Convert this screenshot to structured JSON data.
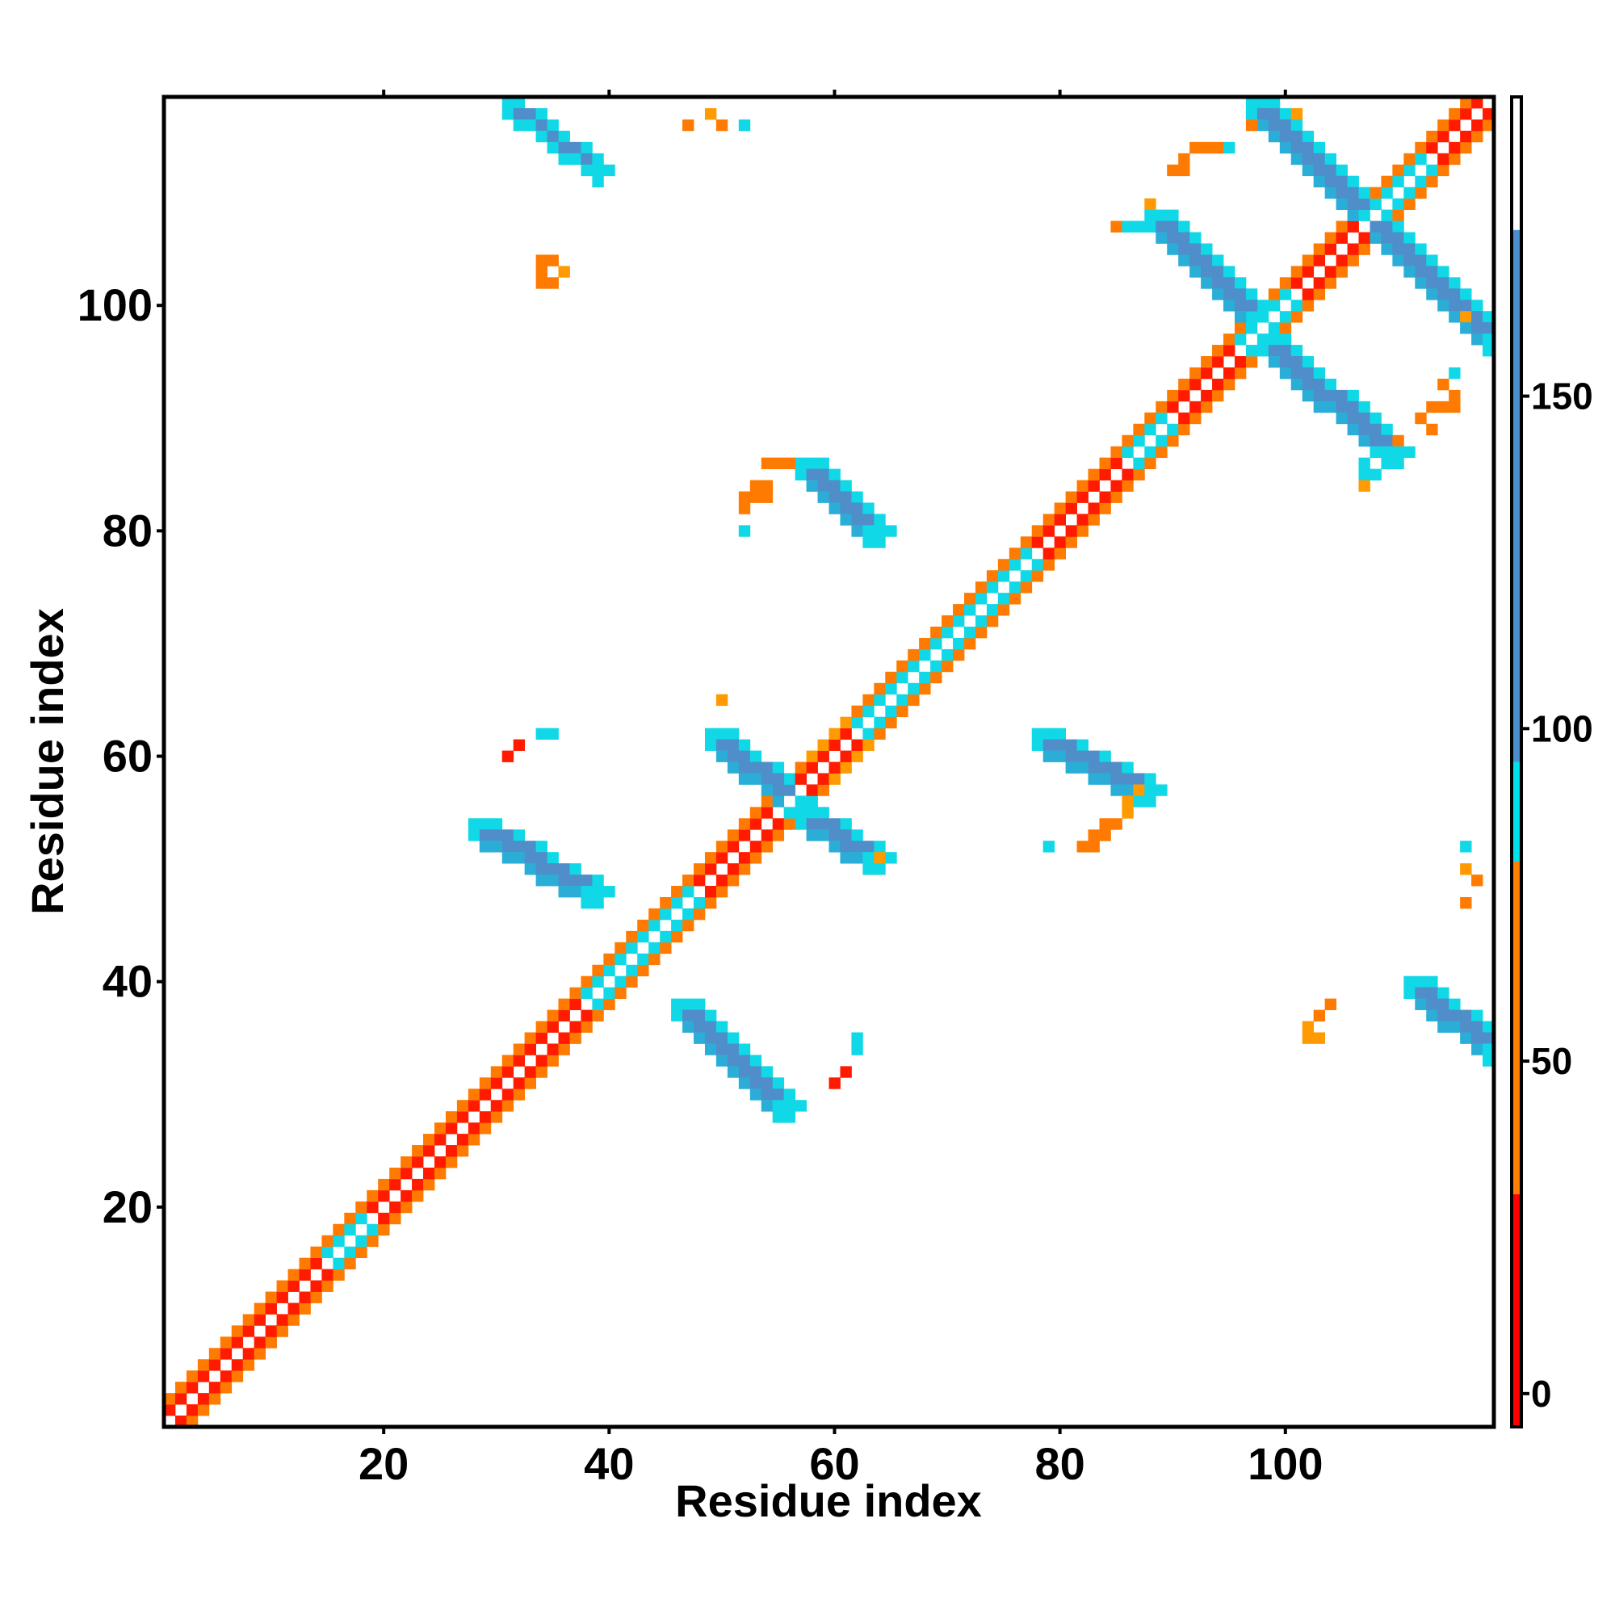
{
  "chart_data": {
    "type": "heatmap",
    "title": "",
    "xlabel": "Residue index",
    "ylabel": "Residue index",
    "xlim": [
      1,
      118
    ],
    "ylim": [
      1,
      118
    ],
    "xticks": [
      20,
      40,
      60,
      80,
      100
    ],
    "yticks": [
      20,
      40,
      60,
      80,
      100
    ],
    "colorbar": {
      "ticks": [
        0,
        50,
        100,
        150
      ],
      "range": [
        -5,
        195
      ],
      "bands": [
        {
          "from": -5,
          "to": 30,
          "color": "#ff0000"
        },
        {
          "from": 30,
          "to": 80,
          "color": "#ff7f00"
        },
        {
          "from": 80,
          "to": 95,
          "color": "#00e0e8"
        },
        {
          "from": 95,
          "to": 175,
          "color": "#4a8fcc"
        },
        {
          "from": 175,
          "to": 195,
          "color": "#ffffff"
        }
      ]
    },
    "cell_colors": {
      "red": "#ff1a00",
      "orange": "#ff7a00",
      "amber": "#ff9a00",
      "cyan": "#10d8e6",
      "blue": "#4f8ec8",
      "teal": "#2aaed8"
    },
    "diagonal_bands": [
      {
        "from": 1,
        "to": 15,
        "offset1": "red",
        "offset2": "orange"
      },
      {
        "from": 15,
        "to": 19,
        "offset1": "cyan",
        "offset2": "orange"
      },
      {
        "from": 19,
        "to": 38,
        "offset1": "red",
        "offset2": "orange"
      },
      {
        "from": 38,
        "to": 48,
        "offset1": "cyan",
        "offset2": "orange"
      },
      {
        "from": 48,
        "to": 58,
        "offset1": "red",
        "offset2": "orange"
      },
      {
        "from": 58,
        "to": 62,
        "offset1": "red",
        "offset2": "amber"
      },
      {
        "from": 62,
        "to": 78,
        "offset1": "cyan",
        "offset2": "orange"
      },
      {
        "from": 78,
        "to": 86,
        "offset1": "red",
        "offset2": "orange"
      },
      {
        "from": 86,
        "to": 90,
        "offset1": "cyan",
        "offset2": "orange"
      },
      {
        "from": 90,
        "to": 96,
        "offset1": "red",
        "offset2": "orange"
      },
      {
        "from": 96,
        "to": 101,
        "offset1": "cyan",
        "offset2": "orange"
      },
      {
        "from": 101,
        "to": 109,
        "offset1": "red",
        "offset2": "orange"
      },
      {
        "from": 109,
        "to": 113,
        "offset1": "cyan",
        "offset2": "orange"
      },
      {
        "from": 113,
        "to": 118,
        "offset1": "red",
        "offset2": "orange"
      }
    ],
    "antiparallel_blocks": [
      {
        "x": [
          31,
          39
        ],
        "y": [
          118,
          112
        ],
        "width": 2
      },
      {
        "x": [
          97,
          107
        ],
        "y": [
          118,
          108
        ],
        "width": 3
      },
      {
        "x": [
          107,
          118
        ],
        "y": [
          108,
          97
        ],
        "width": 3
      },
      {
        "x": [
          88,
          97
        ],
        "y": [
          108,
          99
        ],
        "width": 3
      },
      {
        "x": [
          98,
          109
        ],
        "y": [
          97,
          87
        ],
        "width": 3
      },
      {
        "x": [
          57,
          63
        ],
        "y": [
          86,
          80
        ],
        "width": 3
      },
      {
        "x": [
          49,
          56
        ],
        "y": [
          62,
          56
        ],
        "width": 3
      },
      {
        "x": [
          57,
          63
        ],
        "y": [
          55,
          51
        ],
        "width": 3
      },
      {
        "x": [
          28,
          38
        ],
        "y": [
          54,
          48
        ],
        "width": 3
      },
      {
        "x": [
          46,
          55
        ],
        "y": [
          38,
          29
        ],
        "width": 3
      },
      {
        "x": [
          78,
          87
        ],
        "y": [
          62,
          57
        ],
        "width": 3
      },
      {
        "x": [
          111,
          118
        ],
        "y": [
          40,
          34
        ],
        "width": 3
      }
    ],
    "scattered_cells": [
      {
        "x": 47,
        "y": 116,
        "c": "orange"
      },
      {
        "x": 49,
        "y": 117,
        "c": "amber"
      },
      {
        "x": 50,
        "y": 116,
        "c": "orange"
      },
      {
        "x": 52,
        "y": 116,
        "c": "cyan"
      },
      {
        "x": 92,
        "y": 114,
        "c": "orange"
      },
      {
        "x": 93,
        "y": 114,
        "c": "orange"
      },
      {
        "x": 94,
        "y": 114,
        "c": "orange"
      },
      {
        "x": 95,
        "y": 114,
        "c": "cyan"
      },
      {
        "x": 91,
        "y": 113,
        "c": "orange"
      },
      {
        "x": 90,
        "y": 112,
        "c": "orange"
      },
      {
        "x": 91,
        "y": 112,
        "c": "orange"
      },
      {
        "x": 88,
        "y": 109,
        "c": "amber"
      },
      {
        "x": 85,
        "y": 107,
        "c": "orange"
      },
      {
        "x": 86,
        "y": 107,
        "c": "cyan"
      },
      {
        "x": 87,
        "y": 107,
        "c": "cyan"
      },
      {
        "x": 34,
        "y": 104,
        "c": "orange"
      },
      {
        "x": 35,
        "y": 104,
        "c": "orange"
      },
      {
        "x": 36,
        "y": 103,
        "c": "amber"
      },
      {
        "x": 34,
        "y": 103,
        "c": "orange"
      },
      {
        "x": 34,
        "y": 102,
        "c": "orange"
      },
      {
        "x": 35,
        "y": 102,
        "c": "orange"
      },
      {
        "x": 116,
        "y": 99,
        "c": "amber"
      },
      {
        "x": 115,
        "y": 94,
        "c": "cyan"
      },
      {
        "x": 114,
        "y": 93,
        "c": "orange"
      },
      {
        "x": 115,
        "y": 92,
        "c": "orange"
      },
      {
        "x": 113,
        "y": 91,
        "c": "orange"
      },
      {
        "x": 114,
        "y": 91,
        "c": "orange"
      },
      {
        "x": 115,
        "y": 91,
        "c": "orange"
      },
      {
        "x": 112,
        "y": 90,
        "c": "orange"
      },
      {
        "x": 113,
        "y": 89,
        "c": "orange"
      },
      {
        "x": 110,
        "y": 88,
        "c": "orange"
      },
      {
        "x": 108,
        "y": 87,
        "c": "cyan"
      },
      {
        "x": 107,
        "y": 86,
        "c": "cyan"
      },
      {
        "x": 107,
        "y": 85,
        "c": "cyan"
      },
      {
        "x": 108,
        "y": 85,
        "c": "cyan"
      },
      {
        "x": 107,
        "y": 84,
        "c": "amber"
      },
      {
        "x": 54,
        "y": 86,
        "c": "orange"
      },
      {
        "x": 55,
        "y": 86,
        "c": "orange"
      },
      {
        "x": 56,
        "y": 86,
        "c": "orange"
      },
      {
        "x": 54,
        "y": 84,
        "c": "orange"
      },
      {
        "x": 53,
        "y": 84,
        "c": "orange"
      },
      {
        "x": 52,
        "y": 83,
        "c": "orange"
      },
      {
        "x": 53,
        "y": 83,
        "c": "orange"
      },
      {
        "x": 54,
        "y": 83,
        "c": "orange"
      },
      {
        "x": 52,
        "y": 82,
        "c": "orange"
      },
      {
        "x": 52,
        "y": 80,
        "c": "cyan"
      },
      {
        "x": 50,
        "y": 65,
        "c": "amber"
      },
      {
        "x": 31,
        "y": 60,
        "c": "red"
      },
      {
        "x": 32,
        "y": 61,
        "c": "red"
      },
      {
        "x": 34,
        "y": 62,
        "c": "cyan"
      },
      {
        "x": 35,
        "y": 62,
        "c": "cyan"
      },
      {
        "x": 64,
        "y": 51,
        "c": "amber"
      },
      {
        "x": 87,
        "y": 57,
        "c": "amber"
      },
      {
        "x": 86,
        "y": 56,
        "c": "amber"
      },
      {
        "x": 86,
        "y": 55,
        "c": "amber"
      },
      {
        "x": 84,
        "y": 54,
        "c": "orange"
      },
      {
        "x": 85,
        "y": 54,
        "c": "orange"
      },
      {
        "x": 84,
        "y": 53,
        "c": "orange"
      },
      {
        "x": 83,
        "y": 53,
        "c": "orange"
      },
      {
        "x": 83,
        "y": 52,
        "c": "orange"
      },
      {
        "x": 82,
        "y": 52,
        "c": "orange"
      },
      {
        "x": 79,
        "y": 52,
        "c": "cyan"
      },
      {
        "x": 116,
        "y": 52,
        "c": "cyan"
      },
      {
        "x": 116,
        "y": 50,
        "c": "amber"
      },
      {
        "x": 117,
        "y": 49,
        "c": "orange"
      },
      {
        "x": 116,
        "y": 47,
        "c": "orange"
      },
      {
        "x": 62,
        "y": 35,
        "c": "cyan"
      },
      {
        "x": 62,
        "y": 34,
        "c": "cyan"
      },
      {
        "x": 61,
        "y": 32,
        "c": "red"
      },
      {
        "x": 60,
        "y": 31,
        "c": "red"
      },
      {
        "x": 104,
        "y": 38,
        "c": "orange"
      },
      {
        "x": 103,
        "y": 37,
        "c": "orange"
      },
      {
        "x": 102,
        "y": 36,
        "c": "amber"
      },
      {
        "x": 102,
        "y": 35,
        "c": "amber"
      },
      {
        "x": 103,
        "y": 35,
        "c": "amber"
      },
      {
        "x": 97,
        "y": 116,
        "c": "orange"
      },
      {
        "x": 101,
        "y": 117,
        "c": "amber"
      }
    ]
  }
}
